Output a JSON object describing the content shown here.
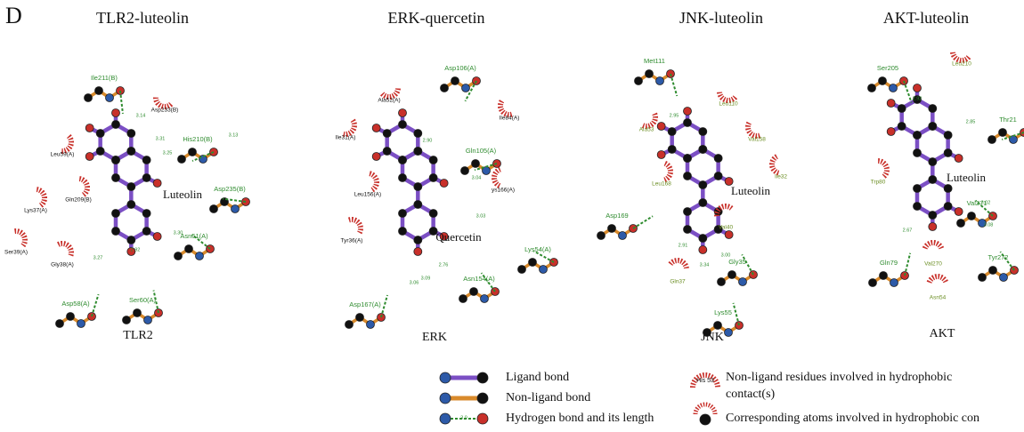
{
  "panel_letter": "D",
  "panels": [
    {
      "title": "TLR2-luteolin",
      "ligand": "Luteolin",
      "protein": "TLR2",
      "hbond_residues": [
        "Ile211(B)",
        "His210(B)",
        "Asp235(B)",
        "Asn61(A)",
        "Ser60(A)",
        "Asp58(A)"
      ],
      "hydrophobic_residues": [
        "Asp233(B)",
        "Leu59(A)",
        "Gln209(B)",
        "Lys37(A)",
        "Ser39(A)",
        "Gly38(A)"
      ],
      "bond_lengths": [
        "3.14",
        "3.31",
        "3.25",
        "3.13",
        "3.30",
        "3.27",
        "2.92"
      ]
    },
    {
      "title": "ERK-quercetin",
      "ligand": "Quercetin",
      "protein": "ERK",
      "hbond_residues": [
        "Asp106(A)",
        "Gln105(A)",
        "Lys54(A)",
        "Asn154(A)",
        "Asp167(A)"
      ],
      "hydrophobic_residues": [
        "Ala52(A)",
        "Ile84(A)",
        "Ile31(A)",
        "ys166(A)",
        "Leu156(A)",
        "Tyr36(A)"
      ],
      "bond_lengths": [
        "2.90",
        "3.04",
        "3.03",
        "2.76",
        "3.09",
        "3.06"
      ]
    },
    {
      "title": "JNK-luteolin",
      "ligand": "Luteolin",
      "protein": "JNK",
      "hbond_residues": [
        "Met111",
        "Asp169",
        "Gly35",
        "Lys55"
      ],
      "hydrophobic_residues": [
        "Leu110",
        "Ala53",
        "Val158",
        "Ile32",
        "Leu168",
        "Val40",
        "Gln37"
      ],
      "bond_lengths": [
        "2.95",
        "2.91",
        "3.34",
        "3.00"
      ]
    },
    {
      "title": "AKT-luteolin",
      "ligand": "Luteolin",
      "protein": "AKT",
      "hbond_residues": [
        "Ser205",
        "Thr21",
        "Val271",
        "Gln79",
        "Tyr272"
      ],
      "hydrophobic_residues": [
        "Leu210",
        "Trp80",
        "Val270",
        "Asn54"
      ],
      "bond_lengths": [
        "2.92",
        "2.85",
        "3.02",
        "3.08",
        "2.67"
      ]
    }
  ],
  "legend": {
    "ligand_bond": "Ligand bond",
    "non_ligand_bond": "Non-ligand bond",
    "hydrogen_bond": "Hydrogen bond and its length",
    "hydrogen_bond_sample": "3.0",
    "hydrophobic_sample": "His 53",
    "hydrophobic_residues": [
      "Non-ligand residues involved in hydrophobic",
      "contact(s)"
    ],
    "hydrophobic_atoms": "Corresponding atoms involved in hydrophobic con"
  }
}
